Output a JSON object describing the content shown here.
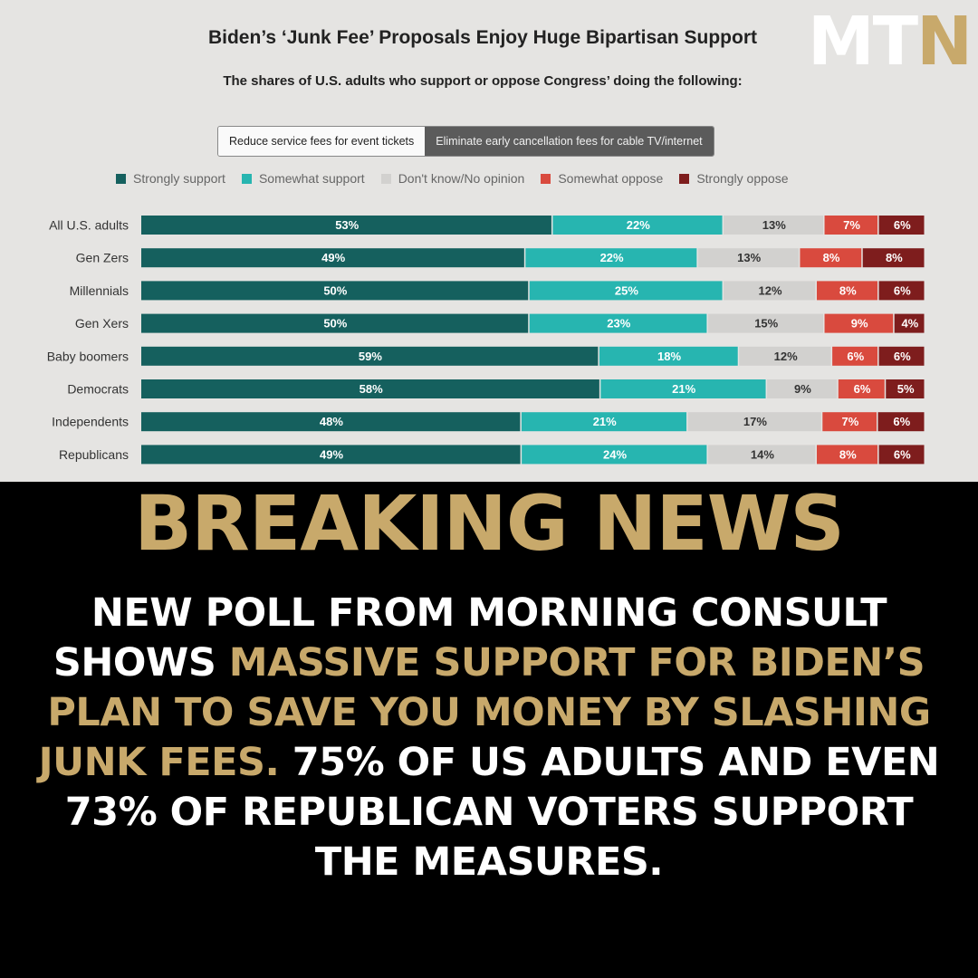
{
  "brand": {
    "logo_prefix": "MT",
    "logo_accent": "N"
  },
  "toggle": {
    "option_1": "Reduce service fees for event tickets",
    "option_2": "Eliminate early cancellation fees for cable TV/internet"
  },
  "colors": {
    "strongly_support": "#15605e",
    "somewhat_support": "#27b5b0",
    "dont_know": "#d2d1cf",
    "somewhat_oppose": "#d94a3e",
    "strongly_oppose": "#7e1d1d",
    "accent_gold": "#c8a96b"
  },
  "chart_data": {
    "type": "bar",
    "orientation": "horizontal",
    "stacked": true,
    "title": "Biden’s ‘Junk Fee’ Proposals Enjoy Huge Bipartisan Support",
    "subtitle": "The shares of U.S. adults who support or oppose Congress’ doing the following:",
    "categories": [
      "All U.S. adults",
      "Gen Zers",
      "Millennials",
      "Gen Xers",
      "Baby boomers",
      "Democrats",
      "Independents",
      "Republicans"
    ],
    "series": [
      {
        "name": "Strongly support",
        "color": "#15605e",
        "label_color": "#ffffff",
        "values": [
          53,
          49,
          50,
          50,
          59,
          58,
          48,
          49
        ]
      },
      {
        "name": "Somewhat support",
        "color": "#27b5b0",
        "label_color": "#ffffff",
        "values": [
          22,
          22,
          25,
          23,
          18,
          21,
          21,
          24
        ]
      },
      {
        "name": "Don't know/No opinion",
        "color": "#d2d1cf",
        "label_color": "#333333",
        "values": [
          13,
          13,
          12,
          15,
          12,
          9,
          17,
          14
        ]
      },
      {
        "name": "Somewhat oppose",
        "color": "#d94a3e",
        "label_color": "#ffffff",
        "values": [
          7,
          8,
          8,
          9,
          6,
          6,
          7,
          8
        ]
      },
      {
        "name": "Strongly oppose",
        "color": "#7e1d1d",
        "label_color": "#ffffff",
        "values": [
          6,
          8,
          6,
          4,
          6,
          5,
          6,
          6
        ]
      }
    ],
    "value_suffix": "%",
    "legend_position": "top",
    "grid": false
  },
  "headline": "BREAKING NEWS",
  "body": {
    "part1": "New poll from Morning Consult shows ",
    "part2_gold": "massive support for Biden’s plan to save you money by slashing junk fees.",
    "part3": " 75% of US adults and even 73% of Republican voters support the measures."
  }
}
